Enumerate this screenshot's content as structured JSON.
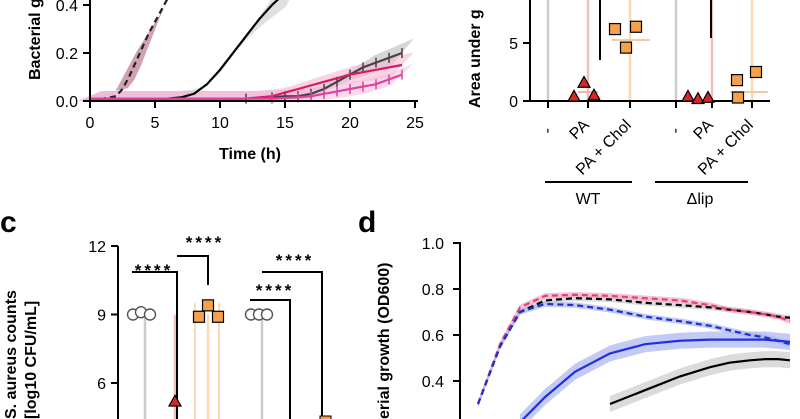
{
  "panel_labels": {
    "c": "c",
    "d": "d"
  },
  "chart_data": [
    {
      "type": "line",
      "panel": "top-left",
      "xlabel": "Time (h)",
      "ylabel": "Bacterial g",
      "xlim": [
        0,
        25
      ],
      "ylim": [
        0,
        0.4
      ],
      "xticks": [
        "0",
        "5",
        "10",
        "15",
        "20",
        "25"
      ],
      "yticks": [
        "0.0",
        "0.2",
        "0.4"
      ],
      "series": [
        {
          "color": "#222222",
          "style": "dashed",
          "band": "#b06080",
          "x": [
            0,
            1,
            2,
            2.5,
            3,
            3.5,
            4,
            4.5,
            5,
            5.5,
            6,
            6.5
          ],
          "y": [
            0.01,
            0.01,
            0.02,
            0.05,
            0.1,
            0.16,
            0.22,
            0.28,
            0.33,
            0.38,
            0.43,
            0.48
          ]
        },
        {
          "color": "#000000",
          "style": "solid",
          "band": "#cccccc",
          "x": [
            0,
            6,
            7,
            8,
            9,
            10,
            11,
            12,
            13,
            14,
            15,
            16
          ],
          "y": [
            0.01,
            0.01,
            0.015,
            0.03,
            0.07,
            0.13,
            0.2,
            0.27,
            0.34,
            0.4,
            0.45,
            0.5
          ]
        },
        {
          "color": "#444444",
          "style": "marker-plus",
          "band": "#bbbbbb",
          "x": [
            0,
            12,
            14,
            15,
            16,
            17,
            18,
            19,
            20,
            21,
            22,
            23,
            24
          ],
          "y": [
            0.01,
            0.01,
            0.015,
            0.02,
            0.02,
            0.03,
            0.05,
            0.08,
            0.11,
            0.14,
            0.16,
            0.18,
            0.2
          ]
        },
        {
          "color": "#d81b60",
          "style": "solid",
          "band": "#f7b6d2",
          "x": [
            0,
            12,
            14,
            16,
            18,
            20,
            22,
            24
          ],
          "y": [
            0.01,
            0.01,
            0.02,
            0.05,
            0.08,
            0.11,
            0.13,
            0.15
          ]
        },
        {
          "color": "#e040a0",
          "style": "marker-plus",
          "band": "#f9c0dc",
          "x": [
            0,
            14,
            16,
            17,
            18,
            19,
            20,
            21,
            22,
            23,
            24
          ],
          "y": [
            0.01,
            0.01,
            0.015,
            0.02,
            0.03,
            0.04,
            0.05,
            0.06,
            0.07,
            0.09,
            0.11
          ]
        }
      ]
    },
    {
      "type": "scatter",
      "panel": "top-right",
      "ylabel": "Area under g",
      "ylim": [
        0,
        10
      ],
      "yticks": [
        "0",
        "5"
      ],
      "categories": [
        "-",
        "PA",
        "PA + Chol",
        "-",
        "PA",
        "PA + Chol"
      ],
      "groups": [
        "WT",
        "Δlip"
      ],
      "series": [
        {
          "category": "PA",
          "group": "WT",
          "marker": "triangle",
          "color": "#d62728",
          "values": [
            0.4,
            1.6,
            0.5
          ]
        },
        {
          "category": "PA + Chol",
          "group": "WT",
          "marker": "square",
          "color": "#f5a04a",
          "values": [
            6.2,
            6.4,
            4.6
          ]
        },
        {
          "category": "PA",
          "group": "Δlip",
          "marker": "triangle",
          "color": "#d62728",
          "values": [
            0.4,
            0.2,
            0.3
          ]
        },
        {
          "category": "PA + Chol",
          "group": "Δlip",
          "marker": "square",
          "color": "#f5a04a",
          "values": [
            0.3,
            1.8,
            2.5
          ]
        }
      ]
    },
    {
      "type": "scatter",
      "panel": "c",
      "ylabel": "S. aureus counts",
      "ylabel2": "[log10 CFU/mL]",
      "ylim": [
        6,
        12
      ],
      "yticks": [
        "6",
        "9",
        "12"
      ],
      "significance": "****",
      "series": [
        {
          "marker": "circle",
          "color": "#ffffff",
          "values": [
            9.0,
            9.1,
            9.0
          ]
        },
        {
          "marker": "triangle",
          "color": "#d62728",
          "values": [
            5.2
          ]
        },
        {
          "marker": "square",
          "color": "#f5a04a",
          "values": [
            8.9,
            9.4,
            8.9
          ]
        },
        {
          "marker": "circle",
          "color": "#ffffff",
          "values": [
            9.0,
            9.0,
            9.0
          ]
        }
      ]
    },
    {
      "type": "line",
      "panel": "d",
      "ylabel": "erial growth (OD600)",
      "ylim": [
        0.3,
        1.0
      ],
      "yticks": [
        "0.4",
        "0.6",
        "0.8",
        "1.0"
      ],
      "series": [
        {
          "color": "#000000",
          "style": "dashed",
          "band": "#cccccc",
          "values": [
            0.3,
            0.55,
            0.7,
            0.75,
            0.76,
            0.755,
            0.74,
            0.73,
            0.72,
            0.71,
            0.7,
            0.69,
            0.68,
            0.675
          ]
        },
        {
          "color": "#e0407a",
          "style": "dashed",
          "band": "#f4a6c4",
          "values": [
            0.3,
            0.56,
            0.72,
            0.77,
            0.775,
            0.77,
            0.76,
            0.75,
            0.73,
            0.71,
            0.7,
            0.69,
            0.68,
            0.66
          ]
        },
        {
          "color": "#1f2fd0",
          "style": "dashed",
          "band": "#a9b4ee",
          "values": [
            0.3,
            0.55,
            0.7,
            0.735,
            0.73,
            0.71,
            0.68,
            0.66,
            0.64,
            0.62,
            0.6,
            0.59,
            0.575,
            0.56
          ]
        },
        {
          "color": "#2030e0",
          "style": "solid",
          "band": "#a9b4ee",
          "values": [
            null,
            null,
            0.22,
            0.33,
            0.44,
            0.52,
            0.56,
            0.575,
            0.58,
            0.58,
            0.58,
            0.58,
            0.575,
            0.57
          ]
        },
        {
          "color": "#000000",
          "style": "solid",
          "band": "#cccccc",
          "values": [
            null,
            null,
            null,
            null,
            null,
            0.3,
            0.36,
            0.42,
            0.46,
            0.48,
            0.49,
            0.495,
            0.495,
            0.49
          ]
        }
      ]
    }
  ]
}
